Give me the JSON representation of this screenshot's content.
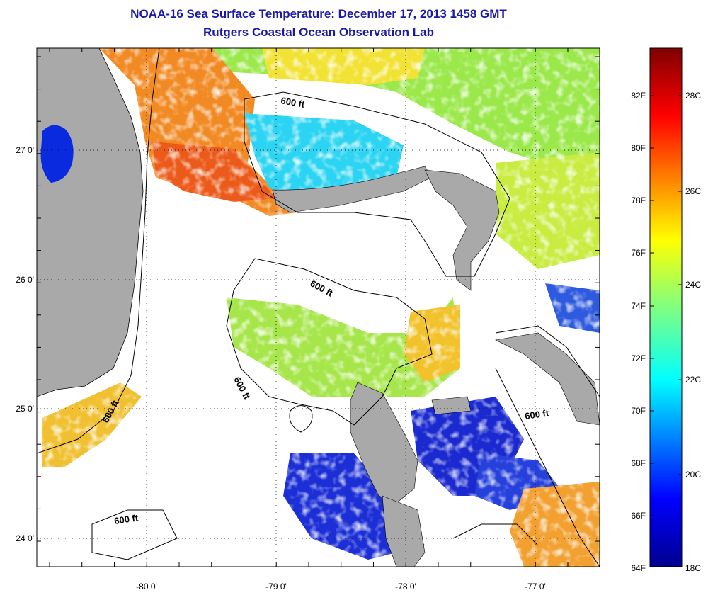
{
  "header": {
    "title": "NOAA-16 Sea Surface Temperature:  December 17, 2013 1458 GMT",
    "subtitle": "Rutgers Coastal Ocean Observation Lab"
  },
  "map": {
    "lat_ticks": [
      "27 0'",
      "26 0'",
      "25 0'",
      "24 0'"
    ],
    "lon_ticks": [
      "-80 0'",
      "-79 0'",
      "-78 0'",
      "-77 0'"
    ],
    "contour_labels": [
      "600 ft",
      "600 ft",
      "600 ft",
      "600 ft",
      "600 ft",
      "600 ft"
    ],
    "colors": {
      "land": "#a9a9a9",
      "cold": "#0a1fd0",
      "cool": "#1ec8f0",
      "mild": "#8fe05a",
      "warm": "#f3e028",
      "hot": "#f07a1c",
      "lake": "#0a2ae0"
    }
  },
  "colorbar": {
    "f_labels": [
      "82F",
      "80F",
      "78F",
      "76F",
      "74F",
      "72F",
      "70F",
      "68F",
      "66F",
      "64F"
    ],
    "c_labels": [
      "28C",
      "26C",
      "24C",
      "22C",
      "20C",
      "18C"
    ]
  }
}
